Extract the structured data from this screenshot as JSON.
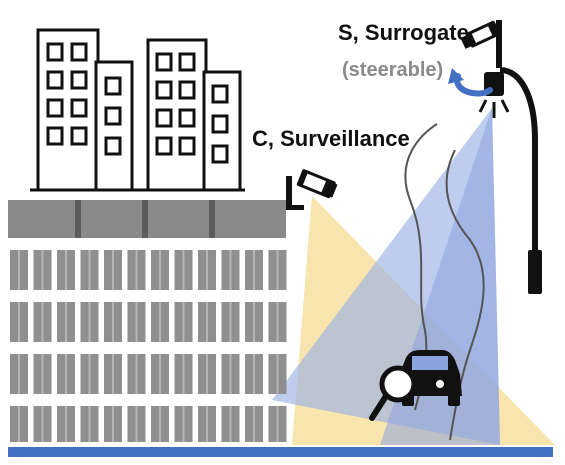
{
  "labels": {
    "surrogate": "S, Surrogate",
    "steerable": "(steerable)",
    "surveillance": "C, Surveillance"
  },
  "colors": {
    "surveillance_cone": "#f7e1a0",
    "surrogate_beam": "#8fa8e0",
    "ground": "#4470c4",
    "text_main": "#111111",
    "text_sub": "#8a8a8a",
    "rotate_arrow": "#4470c4",
    "building_gray": "#8f8f8f"
  },
  "icons": [
    "building-icon",
    "surveillance-camera-icon",
    "surrogate-camera-icon",
    "rotate-arrow-icon",
    "street-lamp-icon",
    "car-icon",
    "magnifier-icon"
  ]
}
